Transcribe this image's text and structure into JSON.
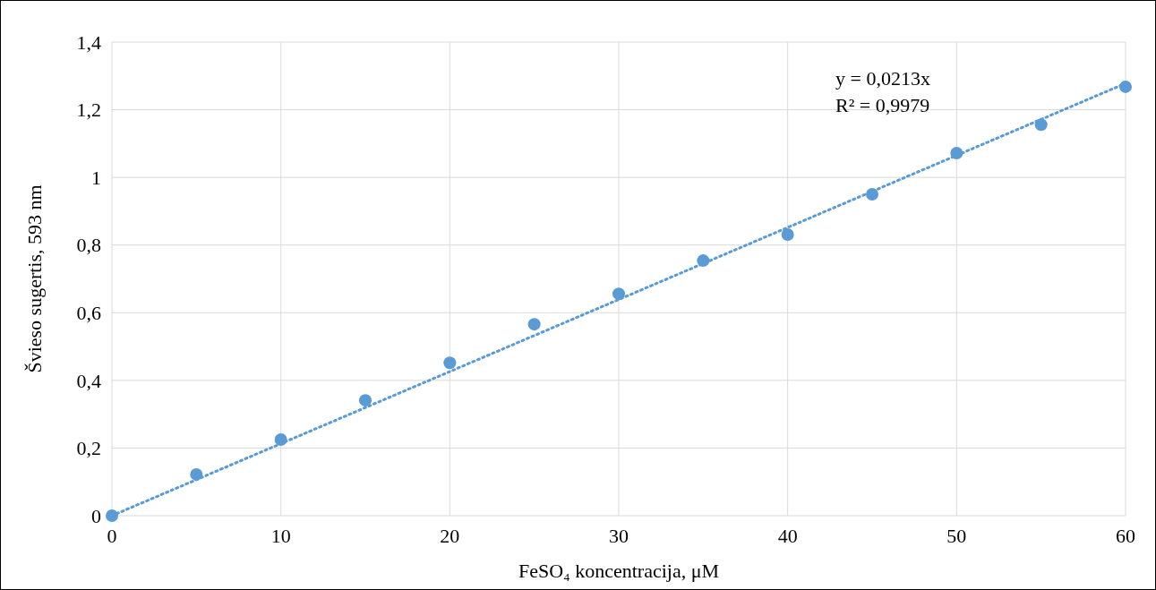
{
  "chart_data": {
    "type": "scatter",
    "xlabel": "FeSO₄ koncentracija, μM",
    "ylabel": "Švieso sugertis, 593 nm",
    "annotations": [
      "y = 0,0213x",
      "R² = 0,9979"
    ],
    "xlim": [
      0,
      60
    ],
    "xticks": [
      0,
      10,
      20,
      30,
      40,
      50,
      60
    ],
    "ylim": [
      0,
      1.4
    ],
    "yticks": [
      0,
      {
        "value": 0.2,
        "label": "0,2"
      },
      {
        "value": 0.4,
        "label": "0,4"
      },
      {
        "value": 0.6,
        "label": "0,6"
      },
      {
        "value": 0.8,
        "label": "0,8"
      },
      1,
      {
        "value": 1.2,
        "label": "1,2"
      },
      {
        "value": 1.4,
        "label": "1,4"
      }
    ],
    "grid": true,
    "series": [
      {
        "marker": "circle",
        "color": "#5b9bd5",
        "x": [
          0,
          5,
          10,
          15,
          20,
          25,
          30,
          35,
          40,
          45,
          50,
          55,
          60
        ],
        "values": [
          0,
          0.122,
          0.225,
          0.341,
          0.452,
          0.566,
          0.656,
          0.754,
          0.831,
          0.95,
          1.072,
          1.156,
          1.268
        ]
      },
      {
        "type": "line",
        "color": "#5b9bd5",
        "line_style": "dotted",
        "x": [
          0,
          60
        ],
        "values": [
          0,
          1.278
        ]
      }
    ]
  }
}
